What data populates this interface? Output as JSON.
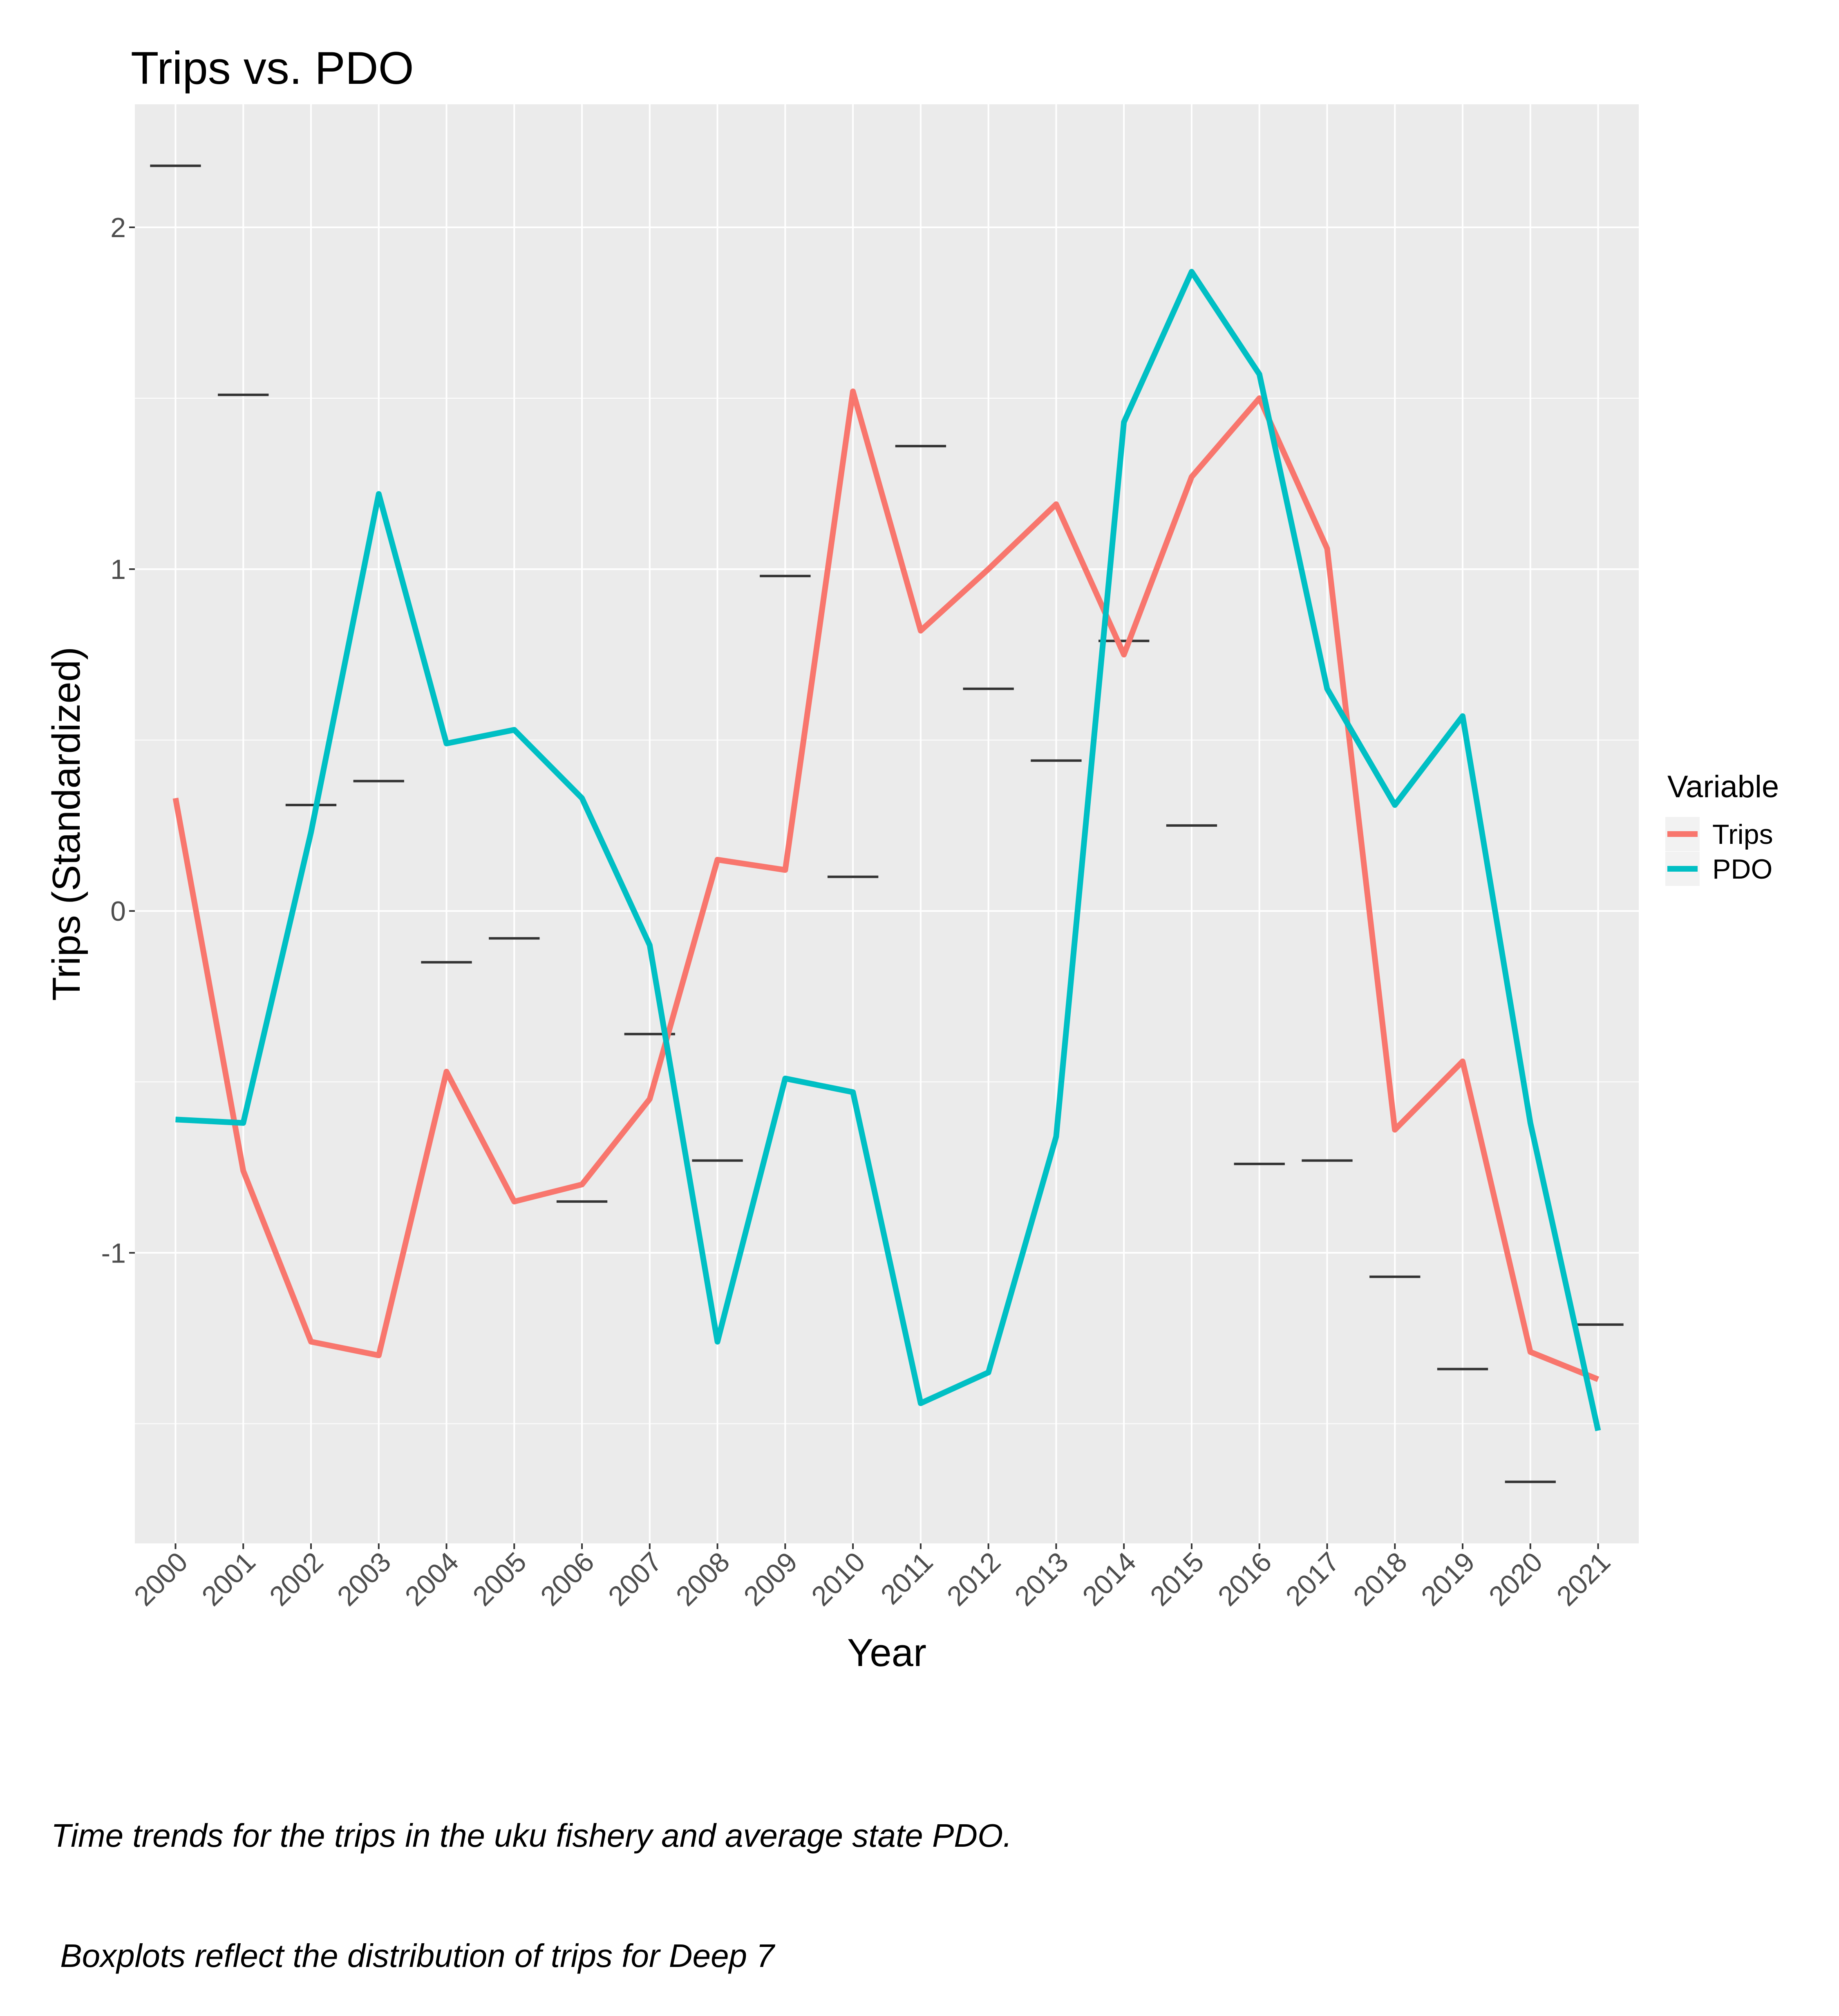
{
  "chart_data": {
    "type": "line",
    "title": "Trips vs. PDO",
    "xlabel": "Year",
    "ylabel": "Trips (Standardized)",
    "categories": [
      "2000",
      "2001",
      "2002",
      "2003",
      "2004",
      "2005",
      "2006",
      "2007",
      "2008",
      "2009",
      "2010",
      "2011",
      "2012",
      "2013",
      "2014",
      "2015",
      "2016",
      "2017",
      "2018",
      "2019",
      "2020",
      "2021"
    ],
    "series": [
      {
        "name": "Trips",
        "color": "#F8766D",
        "values": [
          0.33,
          -0.76,
          -1.26,
          -1.3,
          -0.47,
          -0.85,
          -0.8,
          -0.55,
          0.15,
          0.12,
          1.52,
          0.82,
          1.0,
          1.19,
          0.75,
          1.27,
          1.5,
          1.06,
          -0.64,
          -0.44,
          -1.29,
          -1.37
        ]
      },
      {
        "name": "PDO",
        "color": "#00BFC4",
        "values": [
          -0.61,
          -0.62,
          0.23,
          1.22,
          0.49,
          0.53,
          0.33,
          -0.1,
          -1.26,
          -0.49,
          -0.53,
          -1.44,
          -1.35,
          -0.66,
          1.43,
          1.87,
          1.57,
          0.65,
          0.31,
          0.57,
          -0.62,
          -1.52
        ]
      }
    ],
    "boxplot_medians": [
      2.18,
      1.51,
      0.31,
      0.38,
      -0.15,
      -0.08,
      -0.85,
      -0.36,
      -0.73,
      0.98,
      0.1,
      1.36,
      0.65,
      0.44,
      0.79,
      0.25,
      -0.74,
      -0.73,
      -1.07,
      -1.34,
      -1.67,
      -1.21
    ],
    "ylim": [
      -1.85,
      2.36
    ],
    "yticks": [
      -1,
      0,
      1,
      2
    ],
    "grid": true,
    "legend": {
      "title": "Variable",
      "position": "right",
      "entries": [
        "Trips",
        "PDO"
      ]
    },
    "caption_line1": "Time trends for the trips in the uku fishery and average state PDO.",
    "caption_line2": " Boxplots reflect the distribution of trips for Deep 7",
    "colors": {
      "panel": "#EBEBEB",
      "grid": "#FFFFFF",
      "median": "#333333",
      "axis_text": "#4D4D4D"
    }
  }
}
